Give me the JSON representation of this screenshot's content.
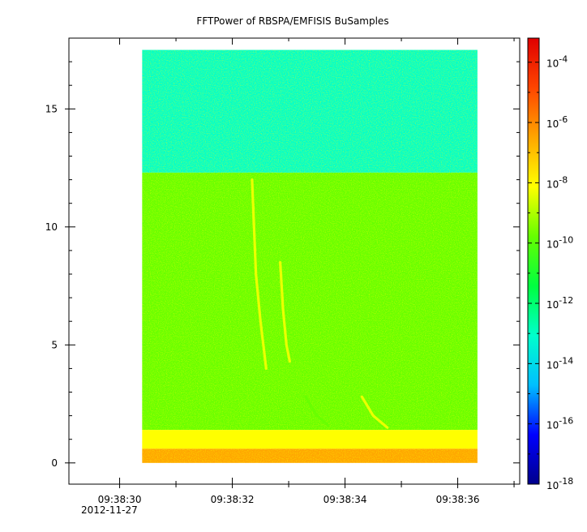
{
  "chart_data": {
    "type": "heatmap",
    "title": "FFTPower of RBSPA/EMFISIS  BuSamples",
    "xlabel": "",
    "ylabel": "",
    "x_axis": {
      "tick_labels": [
        "09:38:30",
        "09:38:32",
        "09:38:34",
        "09:38:36"
      ],
      "tick_seconds": [
        30,
        32,
        34,
        36
      ],
      "date_label": "2012-11-27",
      "range_seconds": [
        29.1,
        37.1
      ]
    },
    "y_axis": {
      "ticks": [
        0,
        5,
        10,
        15
      ],
      "range": [
        -0.9,
        18.0
      ]
    },
    "data_extent": {
      "x_seconds": [
        30.4,
        36.35
      ],
      "y": [
        0.0,
        17.5
      ]
    },
    "colorbar": {
      "scale": "log",
      "range_exponent": [
        -18,
        -3.2
      ],
      "tick_base": "10",
      "tick_exponents": [
        "-4",
        "-6",
        "-8",
        "-10",
        "-12",
        "-14",
        "-16",
        "-18"
      ],
      "tick_values": [
        -4,
        -6,
        -8,
        -10,
        -12,
        -14,
        -16,
        -18
      ],
      "colormap": [
        "#00008b",
        "#0000ff",
        "#00bfff",
        "#00ffcc",
        "#00ff40",
        "#66ff00",
        "#ffff00",
        "#ffa500",
        "#ff4500",
        "#e00000"
      ]
    },
    "bands": [
      {
        "y_from": 12.3,
        "y_to": 17.5,
        "level_exponent": -12.3
      },
      {
        "y_from": 1.4,
        "y_to": 12.3,
        "level_exponent": -10.6
      },
      {
        "y_from": 0.6,
        "y_to": 1.4,
        "level_exponent": -8.2
      },
      {
        "y_from": 0.0,
        "y_to": 0.6,
        "level_exponent": -7.0
      }
    ],
    "features": [
      {
        "name": "",
        "points": [
          [
            32.35,
            12.0
          ],
          [
            32.42,
            8.0
          ],
          [
            32.5,
            6.0
          ],
          [
            32.6,
            4.0
          ]
        ],
        "level_exponent": -8.6
      },
      {
        "name": "",
        "points": [
          [
            32.85,
            8.5
          ],
          [
            32.9,
            6.5
          ],
          [
            32.96,
            5.0
          ],
          [
            33.02,
            4.3
          ]
        ],
        "level_exponent": -8.8
      },
      {
        "name": "",
        "points": [
          [
            33.3,
            2.8
          ],
          [
            33.5,
            2.0
          ],
          [
            33.7,
            1.6
          ]
        ],
        "level_exponent": -9.0
      },
      {
        "name": "",
        "points": [
          [
            34.3,
            2.8
          ],
          [
            34.5,
            2.0
          ],
          [
            34.75,
            1.5
          ]
        ],
        "level_exponent": -8.8
      }
    ],
    "grid": false,
    "legend": "colorbar-right"
  }
}
